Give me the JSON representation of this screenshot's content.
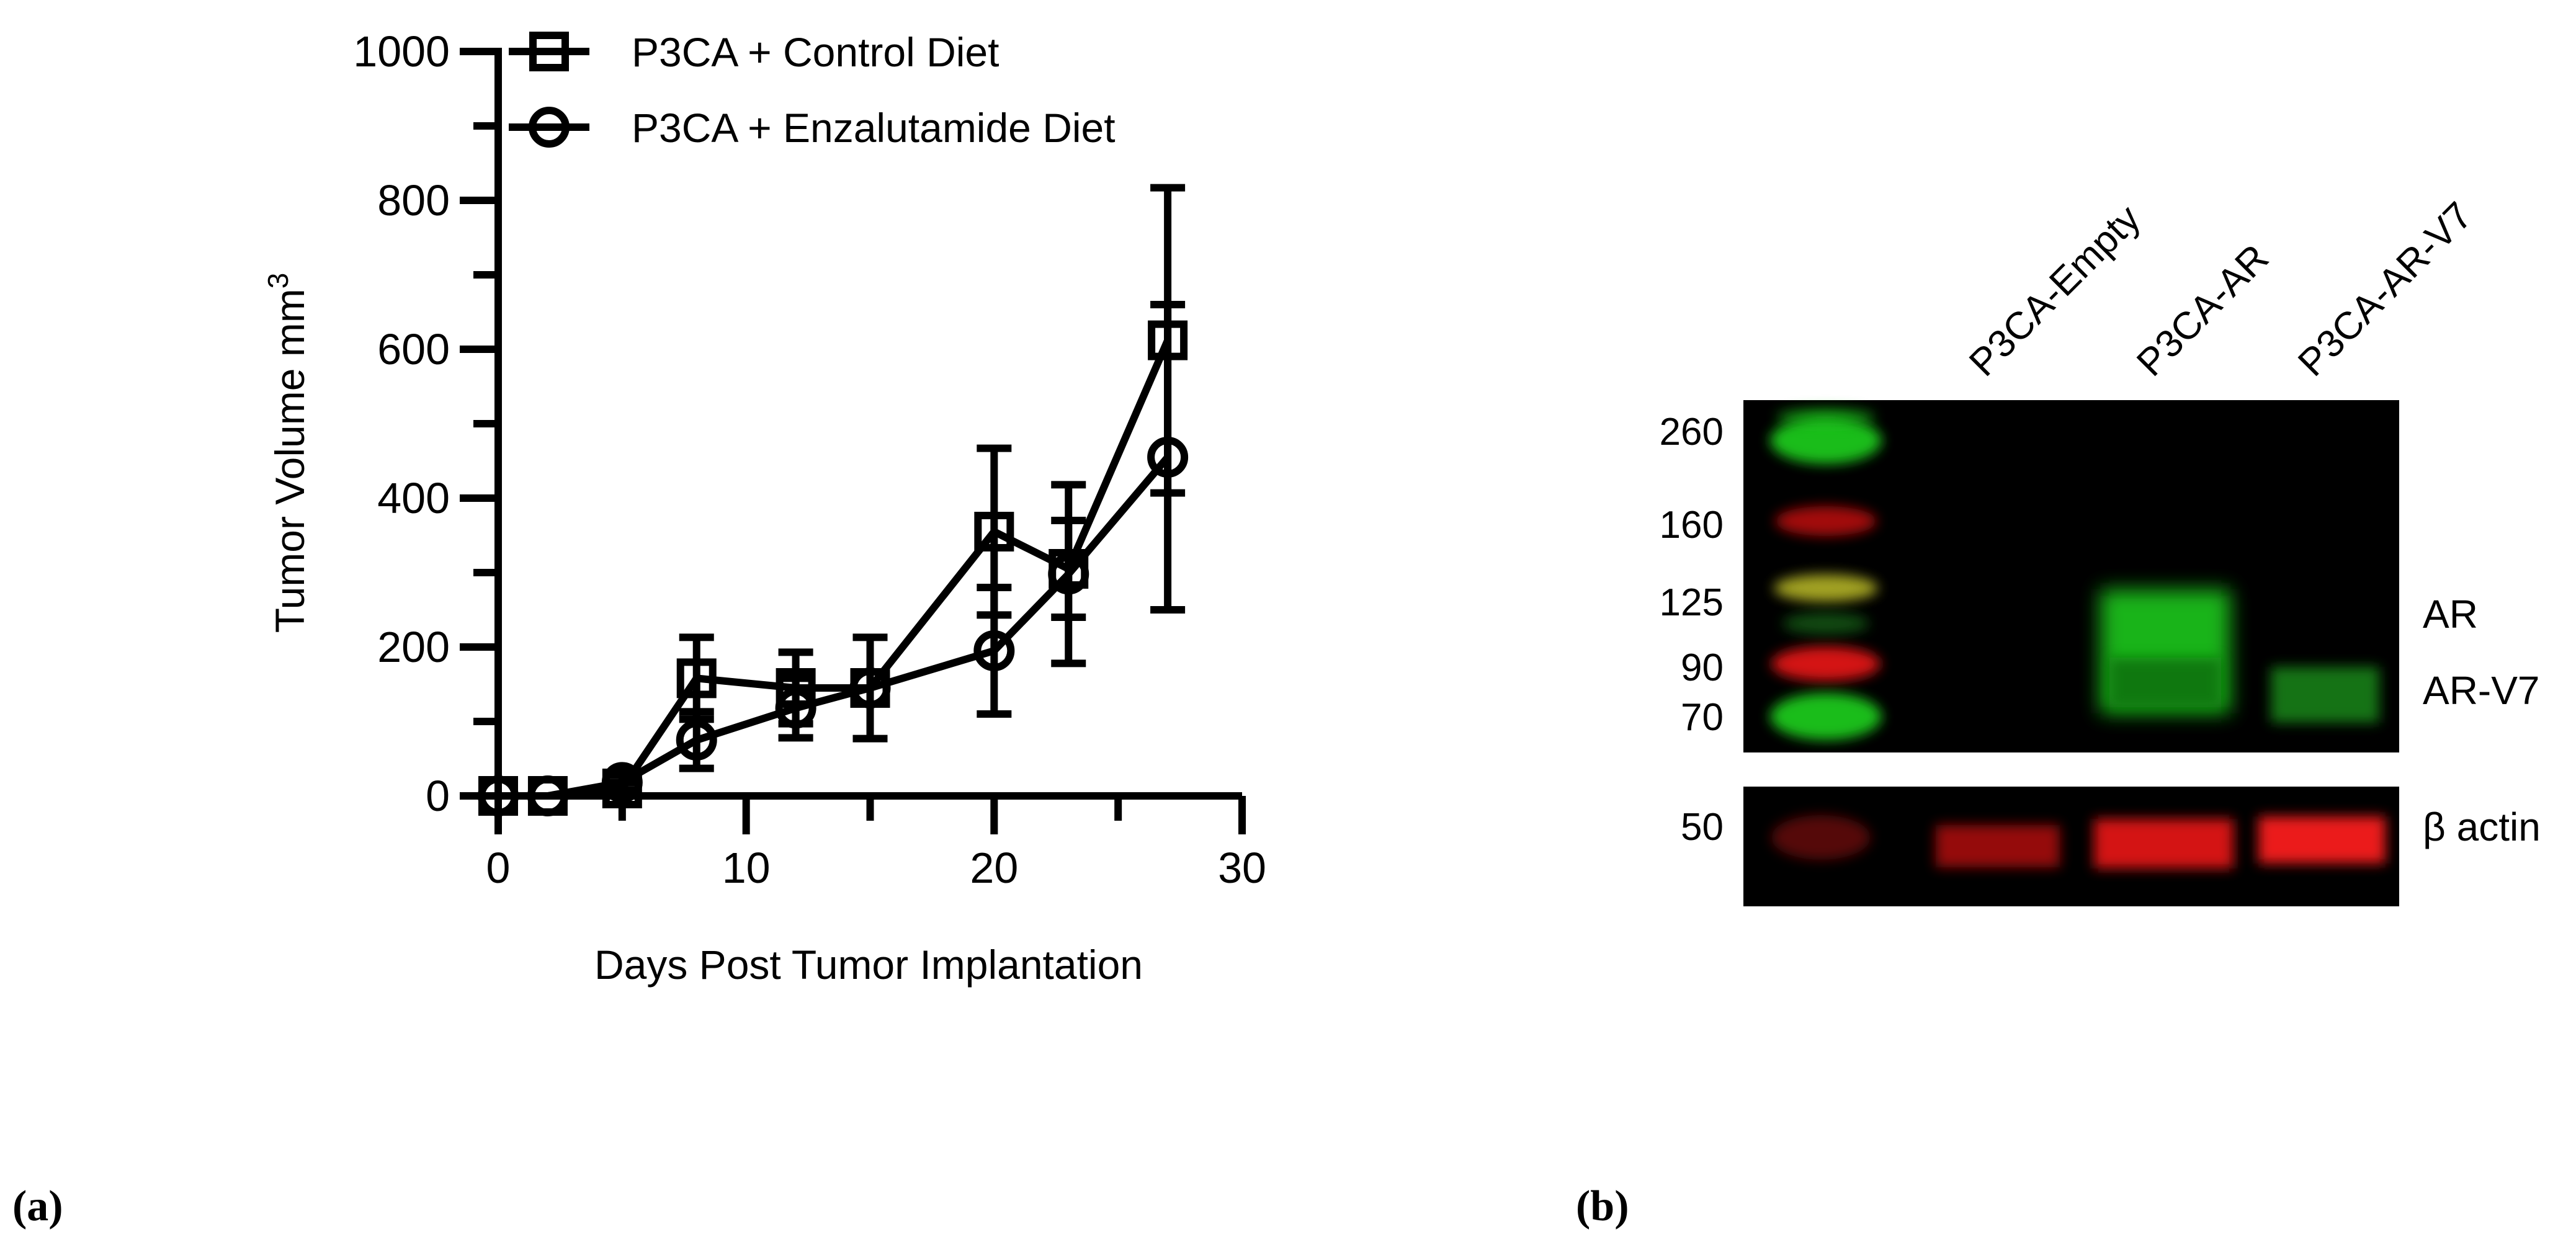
{
  "panels": {
    "a_label": "(a)",
    "b_label": "(b)"
  },
  "chart_data": {
    "type": "line",
    "xlabel": "Days Post Tumor Implantation",
    "ylabel": "Tumor Volume mm",
    "ylabel_superscript": "3",
    "xlim": [
      0,
      30
    ],
    "ylim": [
      0,
      1000
    ],
    "xticks": [
      0,
      10,
      20,
      30
    ],
    "yticks": [
      0,
      200,
      400,
      600,
      800,
      1000
    ],
    "grid": false,
    "legend_position": "top",
    "series": [
      {
        "name": "P3CA + Control Diet",
        "marker": "square",
        "x": [
          0,
          2,
          5,
          8,
          12,
          15,
          20,
          23,
          27
        ],
        "y": [
          0,
          0,
          10,
          158,
          145,
          145,
          355,
          305,
          612
        ],
        "err": [
          0,
          0,
          8,
          55,
          48,
          68,
          112,
          65,
          205
        ]
      },
      {
        "name": "P3CA + Enzalutamide Diet",
        "marker": "circle",
        "x": [
          0,
          2,
          5,
          8,
          12,
          15,
          20,
          23,
          27
        ],
        "y": [
          0,
          0,
          18,
          75,
          118,
          145,
          195,
          298,
          455
        ],
        "err": [
          0,
          0,
          10,
          38,
          40,
          0,
          85,
          120,
          205
        ]
      }
    ]
  },
  "western_blot": {
    "lanes": [
      "P3CA-Empty",
      "P3CA-AR",
      "P3CA-AR-V7"
    ],
    "mw_markers": [
      "260",
      "160",
      "125",
      "90",
      "70"
    ],
    "actin_marker": "50",
    "band_labels": [
      "AR",
      "AR-V7"
    ],
    "actin_label": "β actin",
    "colors": {
      "background": "#000000",
      "green": "#1ec81e",
      "red": "#e01818",
      "yellow": "#b4b428"
    }
  }
}
